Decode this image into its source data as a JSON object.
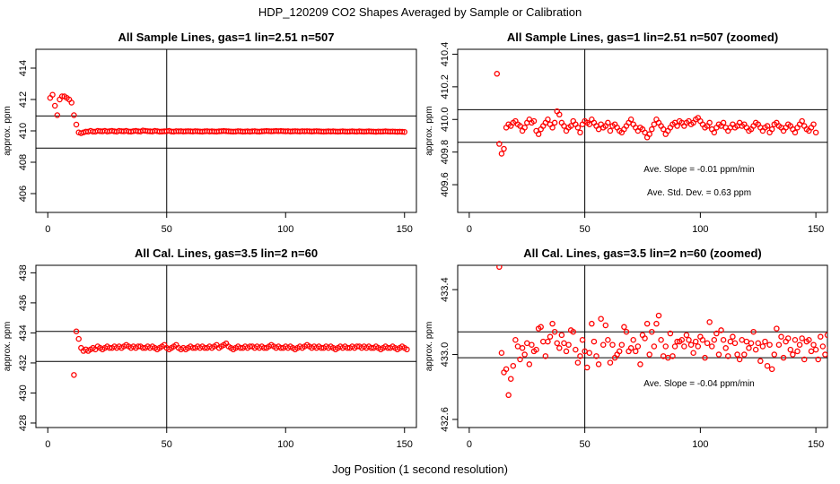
{
  "page": {
    "title": "HDP_120209  CO2 Shapes Averaged by Sample or Calibration",
    "xlabel": "Jog Position (1 second resolution)"
  },
  "colors": {
    "points": "#ff0000",
    "axes": "#000000",
    "background": "#ffffff"
  },
  "chart_data": [
    {
      "type": "scatter",
      "title": "All Sample Lines, gas=1 lin=2.51 n=507",
      "xlabel": "",
      "ylabel": "approx. ppm",
      "xlim": [
        -5,
        155
      ],
      "ylim": [
        404.8,
        415.2
      ],
      "xticks": [
        0,
        50,
        100,
        150
      ],
      "yticks": [
        406,
        408,
        410,
        412,
        414
      ],
      "hlines": [
        408.9,
        410.95
      ],
      "vlines": [
        50
      ],
      "annotations": [],
      "x_start": 1,
      "y": [
        412.1,
        412.3,
        411.6,
        411.0,
        412.0,
        412.2,
        412.2,
        412.1,
        412.0,
        411.8,
        411.0,
        410.4,
        409.9,
        409.85,
        409.9,
        409.95,
        409.95,
        410.0,
        409.95,
        409.95,
        410.0,
        409.98,
        409.97,
        410.0,
        409.96,
        409.98,
        410.0,
        409.97,
        409.95,
        410.0,
        409.98,
        409.97,
        410.0,
        409.96,
        409.95,
        409.98,
        410.0,
        409.97,
        409.96,
        410.02,
        410.0,
        409.98,
        409.97,
        409.96,
        410.0,
        409.98,
        409.95,
        409.96,
        409.97,
        409.98,
        410.0,
        409.96,
        409.95,
        409.98,
        409.97,
        409.98,
        409.96,
        409.97,
        409.98,
        409.97,
        409.96,
        409.98,
        409.97,
        409.96,
        409.95,
        409.97,
        409.98,
        409.96,
        409.97,
        409.96,
        409.95,
        409.97,
        409.98,
        409.99,
        409.98,
        409.97,
        409.96,
        409.95,
        409.96,
        409.98,
        409.97,
        409.95,
        409.96,
        409.97,
        409.95,
        409.97,
        409.98,
        409.96,
        409.95,
        409.97,
        409.98,
        409.99,
        409.98,
        409.97,
        409.98,
        409.99,
        409.98,
        409.99,
        409.98,
        409.97,
        409.98,
        409.96,
        409.97,
        409.98,
        409.97,
        409.96,
        409.98,
        409.97,
        409.98,
        409.97,
        409.96,
        409.97,
        409.98,
        409.97,
        409.96,
        409.95,
        409.96,
        409.97,
        409.96,
        409.97,
        409.96,
        409.95,
        409.96,
        409.97,
        409.96,
        409.95,
        409.96,
        409.97,
        409.96,
        409.95,
        409.97,
        409.96,
        409.95,
        409.96,
        409.97,
        409.96,
        409.95,
        409.94,
        409.96,
        409.95,
        409.96,
        409.97,
        409.96,
        409.95,
        409.96,
        409.95,
        409.94,
        409.95,
        409.94,
        409.93
      ]
    },
    {
      "type": "scatter",
      "title": "All Sample Lines, gas=1 lin=2.51 n=507 (zoomed)",
      "xlabel": "",
      "ylabel": "approx. ppm",
      "xlim": [
        -5,
        155
      ],
      "ylim": [
        409.43,
        410.43
      ],
      "xticks": [
        0,
        50,
        100,
        150
      ],
      "yticks": [
        409.6,
        409.8,
        410.0,
        410.2,
        410.4
      ],
      "hlines": [
        410.06,
        409.86
      ],
      "vlines": [
        50
      ],
      "annotations": [
        "Ave. Slope =  -0.01  ppm/min",
        "Ave. Std. Dev. =  0.63  ppm"
      ],
      "x_start": 12,
      "y": [
        410.28,
        409.85,
        409.79,
        409.82,
        409.95,
        409.97,
        409.96,
        409.98,
        409.99,
        409.97,
        409.96,
        409.93,
        409.95,
        409.98,
        410.0,
        409.98,
        409.99,
        409.93,
        409.91,
        409.94,
        409.96,
        409.98,
        410.0,
        409.97,
        409.95,
        409.98,
        410.05,
        410.03,
        409.98,
        409.96,
        409.93,
        409.95,
        409.96,
        409.99,
        409.97,
        409.95,
        409.92,
        409.97,
        409.99,
        409.98,
        409.97,
        410.0,
        409.98,
        409.96,
        409.94,
        409.97,
        409.95,
        409.96,
        409.98,
        409.93,
        409.96,
        409.97,
        409.95,
        409.93,
        409.92,
        409.94,
        409.96,
        409.98,
        410.0,
        409.97,
        409.95,
        409.93,
        409.95,
        409.94,
        409.92,
        409.89,
        409.91,
        409.94,
        409.97,
        410.0,
        409.98,
        409.96,
        409.94,
        409.91,
        409.93,
        409.95,
        409.97,
        409.98,
        409.96,
        409.99,
        409.98,
        409.96,
        409.98,
        409.99,
        409.97,
        409.98,
        410.0,
        410.01,
        409.99,
        409.97,
        409.95,
        409.96,
        409.98,
        409.94,
        409.92,
        409.95,
        409.97,
        409.96,
        409.98,
        409.95,
        409.93,
        409.95,
        409.97,
        409.95,
        409.96,
        409.98,
        409.96,
        409.97,
        409.95,
        409.93,
        409.94,
        409.96,
        409.98,
        409.97,
        409.95,
        409.93,
        409.95,
        409.96,
        409.92,
        409.94,
        409.97,
        409.98,
        409.96,
        409.95,
        409.93,
        409.95,
        409.97,
        409.96,
        409.94,
        409.92,
        409.95,
        409.97,
        409.99,
        409.96,
        409.94,
        409.93,
        409.95,
        409.97,
        409.92
      ]
    },
    {
      "type": "scatter",
      "title": "All Cal. Lines, gas=3.5 lin=2 n=60",
      "xlabel": "",
      "ylabel": "approx. ppm",
      "xlim": [
        -5,
        155
      ],
      "ylim": [
        427.7,
        438.5
      ],
      "xticks": [
        0,
        50,
        100,
        150
      ],
      "yticks": [
        428,
        430,
        432,
        434,
        436,
        438
      ],
      "hlines": [
        434.1,
        432.1
      ],
      "vlines": [
        50
      ],
      "annotations": [],
      "x_start": 11,
      "y": [
        431.2,
        434.1,
        433.6,
        433.0,
        432.8,
        432.9,
        432.8,
        432.9,
        433.0,
        432.9,
        433.1,
        433.0,
        432.9,
        433.0,
        433.1,
        433.0,
        433.0,
        433.1,
        433.0,
        433.1,
        433.0,
        433.1,
        433.2,
        433.1,
        433.0,
        433.1,
        433.0,
        433.1,
        433.1,
        433.0,
        433.0,
        433.1,
        433.0,
        433.1,
        433.0,
        432.9,
        433.0,
        433.1,
        433.2,
        433.0,
        432.9,
        433.0,
        433.1,
        433.2,
        433.0,
        432.9,
        433.0,
        432.9,
        433.0,
        433.1,
        433.0,
        433.0,
        433.1,
        433.0,
        433.1,
        433.0,
        433.0,
        433.1,
        433.0,
        433.1,
        433.2,
        433.0,
        433.1,
        433.2,
        433.3,
        433.1,
        433.0,
        432.9,
        433.0,
        433.1,
        433.0,
        433.0,
        433.1,
        433.0,
        433.1,
        433.1,
        433.0,
        433.1,
        433.0,
        433.1,
        433.0,
        433.0,
        433.1,
        433.2,
        433.1,
        433.0,
        433.1,
        433.0,
        433.0,
        433.1,
        433.0,
        433.1,
        433.0,
        432.9,
        433.0,
        433.1,
        433.0,
        433.1,
        433.2,
        433.1,
        433.0,
        433.1,
        433.0,
        433.1,
        433.0,
        433.0,
        433.1,
        433.0,
        433.1,
        433.0,
        432.9,
        433.0,
        433.1,
        433.0,
        433.1,
        433.0,
        433.0,
        433.1,
        433.0,
        433.1,
        433.1,
        433.0,
        433.1,
        433.0,
        433.1,
        433.0,
        433.0,
        433.1,
        433.0,
        432.9,
        433.0,
        433.1,
        433.0,
        433.0,
        433.1,
        433.0,
        432.9,
        433.0,
        433.1,
        433.0,
        432.9
      ]
    },
    {
      "type": "scatter",
      "title": "All Cal. Lines, gas=3.5 lin=2 n=60 (zoomed)",
      "xlabel": "",
      "ylabel": "approx. ppm",
      "xlim": [
        -5,
        155
      ],
      "ylim": [
        432.55,
        433.55
      ],
      "xticks": [
        0,
        50,
        100,
        150
      ],
      "yticks": [
        432.6,
        433.0,
        433.4
      ],
      "hlines": [
        433.14,
        432.98
      ],
      "vlines": [
        50
      ],
      "annotations": [
        "Ave. Slope =  -0.04  ppm/min"
      ],
      "x_start": 13,
      "y": [
        433.54,
        433.01,
        432.89,
        432.91,
        432.75,
        432.85,
        432.93,
        433.09,
        433.05,
        432.97,
        433.04,
        433.0,
        433.07,
        432.94,
        433.06,
        433.02,
        433.03,
        433.16,
        433.17,
        433.08,
        432.99,
        433.08,
        433.11,
        433.19,
        433.14,
        433.07,
        433.04,
        433.12,
        433.07,
        433.02,
        433.06,
        433.15,
        433.14,
        433.03,
        432.95,
        432.99,
        433.09,
        433.02,
        432.92,
        433.01,
        433.19,
        433.08,
        432.99,
        432.94,
        433.22,
        433.06,
        433.18,
        433.09,
        432.95,
        433.06,
        432.98,
        433.0,
        433.02,
        433.06,
        433.17,
        433.14,
        433.02,
        433.04,
        433.09,
        433.02,
        433.05,
        432.94,
        433.12,
        433.1,
        433.19,
        433.0,
        433.14,
        433.05,
        433.19,
        433.24,
        433.09,
        432.99,
        433.05,
        432.98,
        433.13,
        432.99,
        433.05,
        433.08,
        433.08,
        433.09,
        433.05,
        433.12,
        433.09,
        433.06,
        433.01,
        433.08,
        433.05,
        433.11,
        433.09,
        432.98,
        433.07,
        433.2,
        433.05,
        433.09,
        433.13,
        433.0,
        433.15,
        433.09,
        433.04,
        432.99,
        433.08,
        433.11,
        433.07,
        433.0,
        432.97,
        433.09,
        433.0,
        433.08,
        433.04,
        433.07,
        433.14,
        433.03,
        433.07,
        432.96,
        433.05,
        433.08,
        432.93,
        433.06,
        432.91,
        433.0,
        433.16,
        433.06,
        433.11,
        432.98,
        433.08,
        433.1,
        433.03,
        433.0,
        433.09,
        433.02,
        433.06,
        433.1,
        432.97,
        433.08,
        433.09,
        433.02,
        433.06,
        433.03,
        432.97,
        433.11,
        433.05,
        433.0,
        433.12,
        433.04,
        432.99
      ]
    }
  ]
}
